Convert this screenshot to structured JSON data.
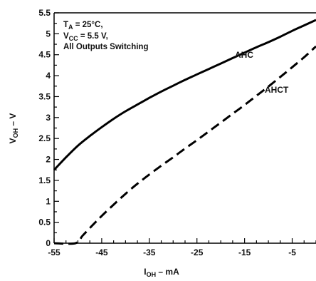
{
  "chart_data": {
    "type": "line",
    "xlabel": {
      "main": "I",
      "sub": "OH",
      "suffix": " – mA"
    },
    "ylabel": {
      "main": "V",
      "sub": "OH",
      "suffix": " – V"
    },
    "xlim": [
      -55,
      0
    ],
    "ylim": [
      0,
      5.5
    ],
    "xticks": [
      -55,
      -45,
      -35,
      -25,
      -15,
      -5
    ],
    "yticks": [
      0,
      0.5,
      1,
      1.5,
      2,
      2.5,
      3,
      3.5,
      4,
      4.5,
      5,
      5.5
    ],
    "x_minor_step": 2.5,
    "y_minor_step": 0.25,
    "grid": false,
    "annotation": {
      "line1": {
        "main": "T",
        "sub": "A",
        "suffix": " = 25°C,"
      },
      "line2": {
        "main": "V",
        "sub": "CC",
        "suffix": " = 5.5 V,"
      },
      "line3": "All Outputs Switching"
    },
    "series": [
      {
        "name": "AHC",
        "style": "solid",
        "color": "#000000",
        "x": [
          -55,
          -52.5,
          -50,
          -47.5,
          -45,
          -42.5,
          -40,
          -37.5,
          -35,
          -32.5,
          -30,
          -27.5,
          -25,
          -22.5,
          -20,
          -17.5,
          -15,
          -12.5,
          -10,
          -7.5,
          -5,
          -2.5,
          0
        ],
        "y": [
          1.75,
          2.05,
          2.33,
          2.56,
          2.77,
          2.97,
          3.15,
          3.31,
          3.47,
          3.62,
          3.76,
          3.9,
          4.03,
          4.16,
          4.29,
          4.42,
          4.55,
          4.68,
          4.8,
          4.93,
          5.07,
          5.2,
          5.33
        ]
      },
      {
        "name": "AHCT",
        "style": "dashed",
        "color": "#000000",
        "x": [
          -55,
          -50.5,
          -49,
          -47,
          -45,
          -42.5,
          -40,
          -37.5,
          -35,
          -32.5,
          -30,
          -27.5,
          -25,
          -22.5,
          -20,
          -17.5,
          -15,
          -12.5,
          -10,
          -7.5,
          -5,
          -2.5,
          0
        ],
        "y": [
          0,
          0,
          0.18,
          0.42,
          0.65,
          0.92,
          1.18,
          1.42,
          1.64,
          1.85,
          2.05,
          2.26,
          2.46,
          2.67,
          2.88,
          3.09,
          3.3,
          3.52,
          3.74,
          3.97,
          4.2,
          4.44,
          4.7
        ]
      }
    ]
  }
}
